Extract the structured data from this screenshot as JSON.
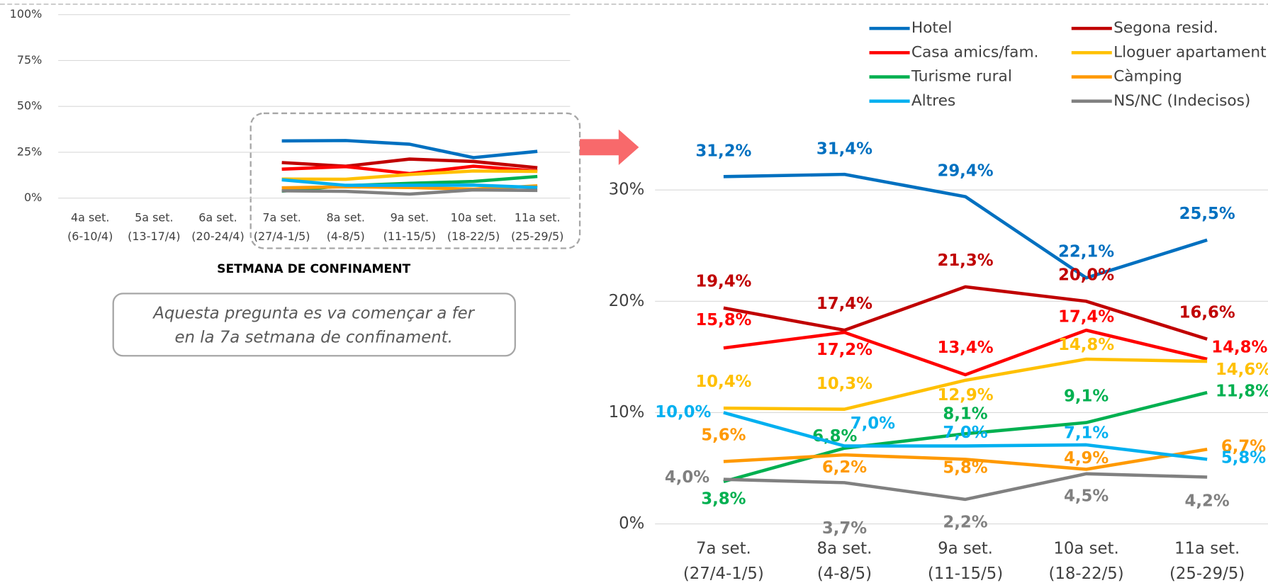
{
  "chart_data": [
    {
      "type": "line",
      "categories": [
        [
          "4a set.",
          "(6-10/4)"
        ],
        [
          "5a set.",
          "(13-17/4)"
        ],
        [
          "6a set.",
          "(20-24/4)"
        ],
        [
          "7a set.",
          "(27/4-1/5)"
        ],
        [
          "8a set.",
          "(4-8/5)"
        ],
        [
          "9a set.",
          "(11-15/5)"
        ],
        [
          "10a set.",
          "(18-22/5)"
        ],
        [
          "11a set.",
          "(25-29/5)"
        ]
      ],
      "x_label": "SETMANA DE CONFINAMENT",
      "note": [
        "Aquesta pregunta es va començar a fer",
        "en la 7a setmana de confinament."
      ],
      "ylim": [
        0,
        100
      ],
      "yticks": [
        {
          "value": 0,
          "label": "0%"
        },
        {
          "value": 25,
          "label": "25%"
        },
        {
          "value": 50,
          "label": "50%"
        },
        {
          "value": 75,
          "label": "75%"
        },
        {
          "value": 100,
          "label": "100%"
        }
      ],
      "grid": true,
      "series": [
        {
          "color": "#0070c0",
          "values": [
            null,
            null,
            null,
            31.2,
            31.4,
            29.4,
            22.1,
            25.5
          ]
        },
        {
          "color": "#c00000",
          "values": [
            null,
            null,
            null,
            19.4,
            17.4,
            21.3,
            20.0,
            16.6
          ]
        },
        {
          "color": "#ff0000",
          "values": [
            null,
            null,
            null,
            15.8,
            17.2,
            13.4,
            17.4,
            14.8
          ]
        },
        {
          "color": "#ffc000",
          "values": [
            null,
            null,
            null,
            10.4,
            10.3,
            12.9,
            14.8,
            14.6
          ]
        },
        {
          "color": "#00b050",
          "values": [
            null,
            null,
            null,
            3.8,
            6.8,
            8.1,
            9.1,
            11.8
          ]
        },
        {
          "color": "#ff9900",
          "values": [
            null,
            null,
            null,
            5.6,
            6.2,
            5.8,
            4.9,
            6.7
          ]
        },
        {
          "color": "#00b0f0",
          "values": [
            null,
            null,
            null,
            10.0,
            7.0,
            7.0,
            7.1,
            5.8
          ]
        },
        {
          "color": "#808080",
          "values": [
            null,
            null,
            null,
            4.0,
            3.7,
            2.2,
            4.5,
            4.2
          ]
        }
      ]
    },
    {
      "type": "line",
      "categories": [
        [
          "7a set.",
          "(27/4-1/5)"
        ],
        [
          "8a set.",
          "(4-8/5)"
        ],
        [
          "9a set.",
          "(11-15/5)"
        ],
        [
          "10a set.",
          "(18-22/5)"
        ],
        [
          "11a set.",
          "(25-29/5)"
        ]
      ],
      "ylim": [
        0,
        35
      ],
      "yticks": [
        {
          "value": 0,
          "label": "0%"
        },
        {
          "value": 10,
          "label": "10%"
        },
        {
          "value": 20,
          "label": "20%"
        },
        {
          "value": 30,
          "label": "30%"
        }
      ],
      "grid": true,
      "legend": "top-right",
      "series": [
        {
          "name": "Hotel",
          "color": "#0070c0",
          "values": [
            31.2,
            31.4,
            29.4,
            22.1,
            25.5
          ],
          "value_labels": [
            "31,2%",
            "31,4%",
            "29,4%",
            "22,1%",
            "25,5%"
          ]
        },
        {
          "name": "Segona resid.",
          "color": "#c00000",
          "values": [
            19.4,
            17.4,
            21.3,
            20.0,
            16.6
          ],
          "value_labels": [
            "19,4%",
            "17,4%",
            "21,3%",
            "20,0%",
            "16,6%"
          ]
        },
        {
          "name": "Casa amics/fam.",
          "color": "#ff0000",
          "values": [
            15.8,
            17.2,
            13.4,
            17.4,
            14.8
          ],
          "value_labels": [
            "15,8%",
            "17,2%",
            "13,4%",
            "17,4%",
            "14,8%"
          ]
        },
        {
          "name": "Lloguer apartament",
          "color": "#ffc000",
          "values": [
            10.4,
            10.3,
            12.9,
            14.8,
            14.6
          ],
          "value_labels": [
            "10,4%",
            "10,3%",
            "12,9%",
            "14,8%",
            "14,6%"
          ]
        },
        {
          "name": "Turisme rural",
          "color": "#00b050",
          "values": [
            3.8,
            6.8,
            8.1,
            9.1,
            11.8
          ],
          "value_labels": [
            "3,8%",
            "6,8%",
            "8,1%",
            "9,1%",
            "11,8%"
          ]
        },
        {
          "name": "Càmping",
          "color": "#ff9900",
          "values": [
            5.6,
            6.2,
            5.8,
            4.9,
            6.7
          ],
          "value_labels": [
            "5,6%",
            "6,2%",
            "5,8%",
            "4,9%",
            "6,7%"
          ]
        },
        {
          "name": "Altres",
          "color": "#00b0f0",
          "values": [
            10.0,
            7.0,
            7.0,
            7.1,
            5.8
          ],
          "value_labels": [
            "10,0%",
            "7,0%",
            "7,0%",
            "7,1%",
            "5,8%"
          ]
        },
        {
          "name": "NS/NC (Indecisos)",
          "color": "#808080",
          "values": [
            4.0,
            3.7,
            2.2,
            4.5,
            4.2
          ],
          "value_labels": [
            "4,0%",
            "3,7%",
            "2,2%",
            "4,5%",
            "4,2%"
          ]
        }
      ]
    }
  ]
}
